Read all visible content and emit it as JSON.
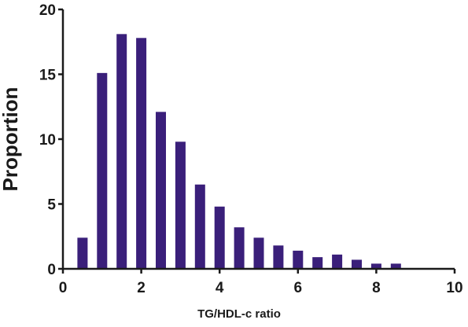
{
  "chart_data": {
    "type": "bar",
    "title": "",
    "xlabel": "TG/HDL-c ratio",
    "ylabel": "Proportion",
    "xlim": [
      0,
      10
    ],
    "ylim": [
      0,
      20
    ],
    "xticks": [
      "0",
      "2",
      "4",
      "6",
      "8",
      "10"
    ],
    "yticks": [
      "0",
      "5",
      "10",
      "15",
      "20"
    ],
    "bar_color": "#3a1f7a",
    "grid": false,
    "legend": "none",
    "x": [
      0.5,
      1.0,
      1.5,
      2.0,
      2.5,
      3.0,
      3.5,
      4.0,
      4.5,
      5.0,
      5.5,
      6.0,
      6.5,
      7.0,
      7.5,
      8.0,
      8.5
    ],
    "values": [
      2.4,
      15.1,
      18.1,
      17.8,
      12.1,
      9.8,
      6.5,
      4.8,
      3.2,
      2.4,
      1.8,
      1.4,
      0.9,
      1.1,
      0.7,
      0.4,
      0.4
    ]
  }
}
